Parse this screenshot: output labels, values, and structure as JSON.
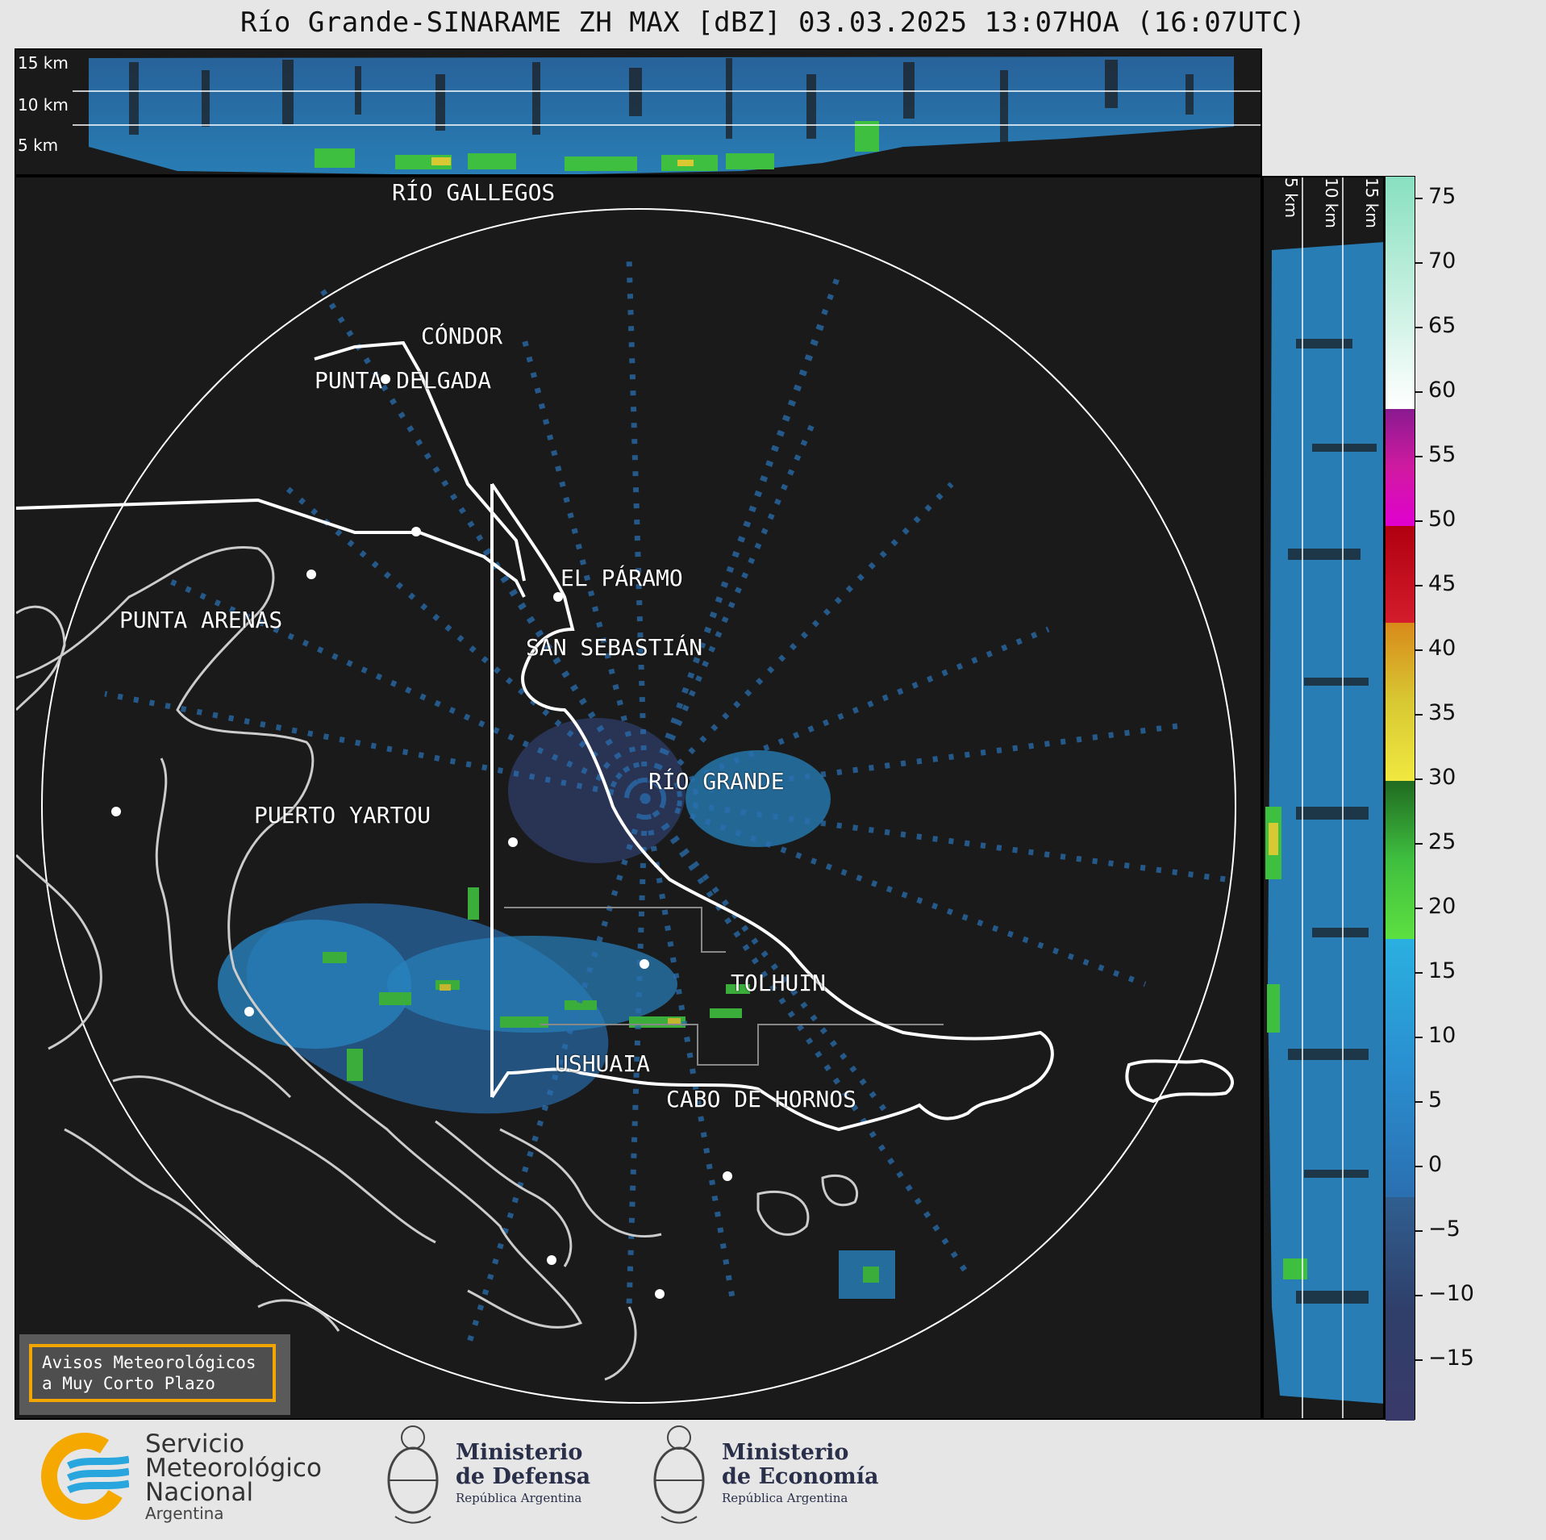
{
  "title": "Río Grande-SINARAME ZH MAX [dBZ] 03.03.2025 13:07HOA (16:07UTC)",
  "top_panel": {
    "height_labels": [
      "15 km",
      "10 km",
      "5 km"
    ]
  },
  "side_panel": {
    "height_labels": [
      "5 km",
      "10 km",
      "15 km"
    ]
  },
  "cities": [
    {
      "name": "RÍO GALLEGOS"
    },
    {
      "name": "CÓNDOR"
    },
    {
      "name": "PUNTA DELGADA"
    },
    {
      "name": "EL PÁRAMO"
    },
    {
      "name": "PUNTA ARENAS"
    },
    {
      "name": "SAN SEBASTIÁN"
    },
    {
      "name": "RÍO GRANDE"
    },
    {
      "name": "PUERTO YARTOU"
    },
    {
      "name": "TOLHUIN"
    },
    {
      "name": "USHUAIA"
    },
    {
      "name": "CABO DE HORNOS"
    }
  ],
  "colorbar": {
    "unit": "dBZ",
    "ticks": [
      "75",
      "70",
      "65",
      "60",
      "55",
      "50",
      "45",
      "40",
      "35",
      "30",
      "25",
      "20",
      "15",
      "10",
      "5",
      "0",
      "−5",
      "−10",
      "−15"
    ],
    "colors": {
      "below_0": "#2f3f6a",
      "0_to_17": "#2a8fd0",
      "17_to_29": "#3fbf3f",
      "29_to_42": "#d8c832",
      "42_to_49": "#d41c2c",
      "49_to_58": "#d01aa0",
      "58_to_60": "#ffffff",
      "60_to_76": "#88e0c0"
    }
  },
  "avisos": {
    "line1": "Avisos Meteorológicos",
    "line2": "a Muy Corto Plazo"
  },
  "logos": {
    "smn": {
      "line1": "Servicio",
      "line2": "Meteorológico",
      "line3": "Nacional",
      "line4": "Argentina"
    },
    "defensa": {
      "line1": "Ministerio",
      "line2": "de Defensa",
      "line3": "República Argentina"
    },
    "economia": {
      "line1": "Ministerio",
      "line2": "de Economía",
      "line3": "República Argentina"
    }
  }
}
